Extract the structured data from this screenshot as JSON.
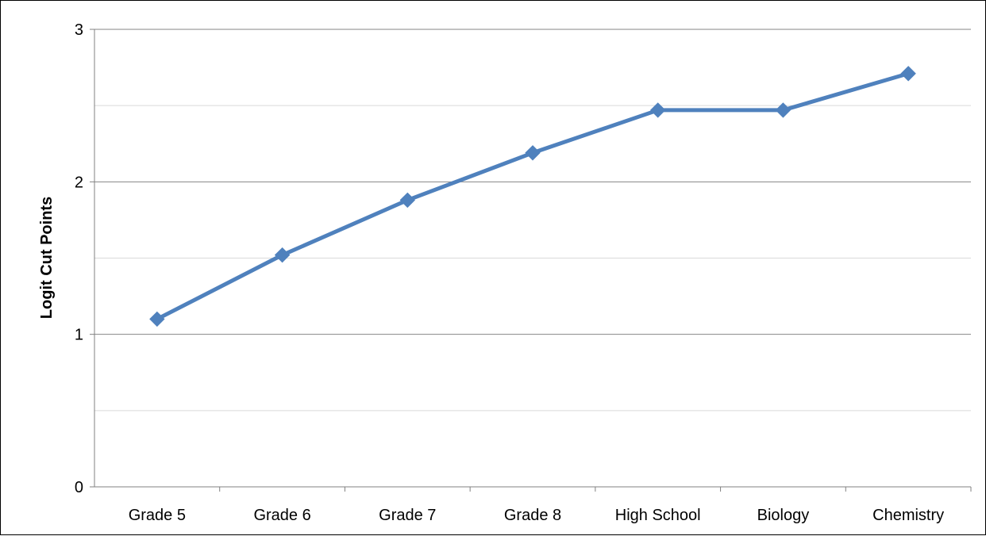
{
  "chart_data": {
    "type": "line",
    "title": "",
    "xlabel": "",
    "ylabel": "Logit Cut Points",
    "categories": [
      "Grade 5",
      "Grade 6",
      "Grade 7",
      "Grade 8",
      "High School",
      "Biology",
      "Chemistry"
    ],
    "series": [
      {
        "values": [
          1.1,
          1.52,
          1.88,
          2.19,
          2.47,
          2.47,
          2.71
        ],
        "color": "#4F81BD",
        "marker": "diamond"
      }
    ],
    "ylim": [
      0,
      3
    ],
    "yticks": [
      "0",
      "1",
      "2",
      "3"
    ],
    "minor_gridlines": [
      0.5,
      1.5,
      2.5
    ],
    "grid": true,
    "legend": "none"
  }
}
